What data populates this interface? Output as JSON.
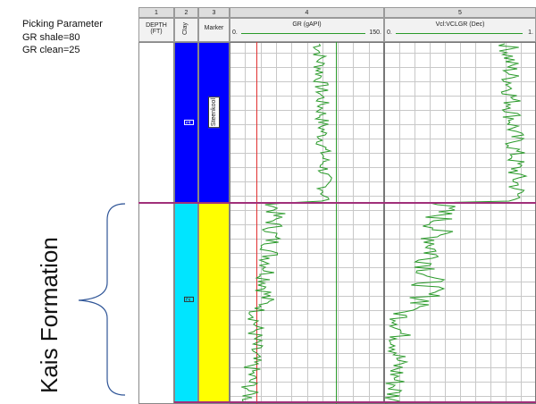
{
  "annotation": {
    "title": "Picking Parameter",
    "gr_shale": "GR shale=80",
    "gr_clean": "GR clean=25",
    "formation": "Kais Formation"
  },
  "header": {
    "track_numbers": [
      "1",
      "2",
      "3",
      "4",
      "5"
    ],
    "depth_label_1": "DEPTH",
    "depth_label_2": "(FT)",
    "clay_label": "Clay",
    "marker_label": "Marker",
    "gr": {
      "name": "GR (gAPI)",
      "min": "0.",
      "max": "150."
    },
    "vcl": {
      "name": "Vcl:VCLGR (Dec)",
      "min": "0.",
      "max": "1."
    }
  },
  "zones": [
    {
      "label": "1",
      "color": "#0000ff"
    },
    {
      "label": "2",
      "color": "#00e5ff"
    }
  ],
  "marker": {
    "label": "Steenkool",
    "fill": "#ffff00"
  },
  "colors": {
    "curve": "#2a9a2a",
    "boundary": "#a0307a",
    "grid": "#c8c8c8",
    "red_line": "#e03030",
    "cutoff_line": "#2a9a2a",
    "brace": "#2f5597"
  }
}
